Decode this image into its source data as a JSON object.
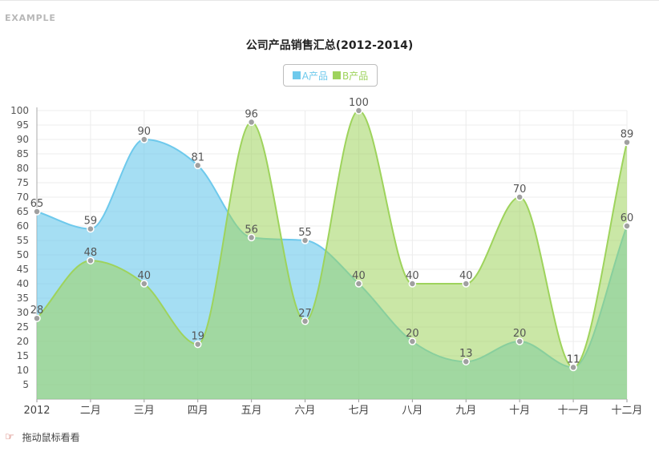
{
  "header": {
    "tag": "EXAMPLE"
  },
  "chart_data": {
    "type": "area",
    "title": "公司产品销售汇总(2012-2014)",
    "categories": [
      "2012",
      "二月",
      "三月",
      "四月",
      "五月",
      "六月",
      "七月",
      "八月",
      "九月",
      "十月",
      "十一月",
      "十二月"
    ],
    "series": [
      {
        "name": "A产品",
        "color": "#6ec9ec",
        "values": [
          65,
          59,
          90,
          81,
          56,
          55,
          40,
          20,
          13,
          20,
          11,
          60
        ]
      },
      {
        "name": "B产品",
        "color": "#9ed35c",
        "values": [
          28,
          48,
          40,
          19,
          96,
          27,
          100,
          40,
          40,
          70,
          11,
          89
        ]
      }
    ],
    "ylim": [
      0,
      100
    ],
    "yticks": [
      5,
      10,
      15,
      20,
      25,
      30,
      35,
      40,
      45,
      50,
      55,
      60,
      65,
      70,
      75,
      80,
      85,
      90,
      95,
      100
    ],
    "grid": true,
    "legend_position": "top-center",
    "xlabel": "",
    "ylabel": ""
  },
  "footer": {
    "hint": "拖动鼠标看看",
    "hint_icon": "pointing-hand-icon"
  }
}
